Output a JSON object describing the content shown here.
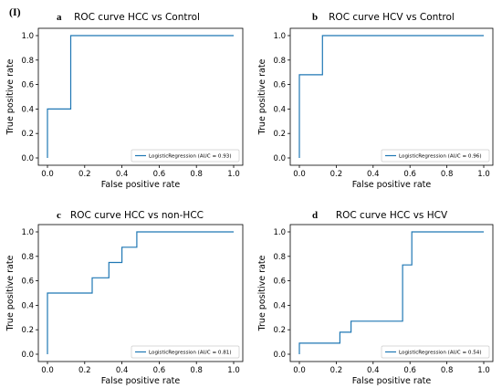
{
  "figure": {
    "label": "(I)"
  },
  "chart_data": [
    {
      "type": "line",
      "panel_letter": "a",
      "title": "ROC curve HCC vs Control",
      "xlabel": "False positive rate",
      "ylabel": "True positive rate",
      "xlim": [
        0,
        1
      ],
      "ylim": [
        0,
        1
      ],
      "xticks": [
        "0.0",
        "0.2",
        "0.4",
        "0.6",
        "0.8",
        "1.0"
      ],
      "yticks": [
        "0.0",
        "0.2",
        "0.4",
        "0.6",
        "0.8",
        "1.0"
      ],
      "legend_position": "lower-right",
      "grid": false,
      "series": [
        {
          "name": "LogisticRegression (AUC = 0.93)",
          "color": "#1f77b4",
          "x": [
            0,
            0,
            0.125,
            0.125,
            1
          ],
          "y": [
            0,
            0.4,
            0.4,
            1.0,
            1.0
          ]
        }
      ]
    },
    {
      "type": "line",
      "panel_letter": "b",
      "title": "ROC curve HCV vs Control",
      "xlabel": "False positive rate",
      "ylabel": "True positive rate",
      "xlim": [
        0,
        1
      ],
      "ylim": [
        0,
        1
      ],
      "xticks": [
        "0.0",
        "0.2",
        "0.4",
        "0.6",
        "0.8",
        "1.0"
      ],
      "yticks": [
        "0.0",
        "0.2",
        "0.4",
        "0.6",
        "0.8",
        "1.0"
      ],
      "legend_position": "lower-right",
      "grid": false,
      "series": [
        {
          "name": "LogisticRegression (AUC = 0.96)",
          "color": "#1f77b4",
          "x": [
            0,
            0,
            0.125,
            0.125,
            1
          ],
          "y": [
            0,
            0.68,
            0.68,
            1.0,
            1.0
          ]
        }
      ]
    },
    {
      "type": "line",
      "panel_letter": "c",
      "title": "ROC curve HCC vs non-HCC",
      "xlabel": "False positive rate",
      "ylabel": "True positive rate",
      "xlim": [
        0,
        1
      ],
      "ylim": [
        0,
        1
      ],
      "xticks": [
        "0.0",
        "0.2",
        "0.4",
        "0.6",
        "0.8",
        "1.0"
      ],
      "yticks": [
        "0.0",
        "0.2",
        "0.4",
        "0.6",
        "0.8",
        "1.0"
      ],
      "legend_position": "lower-right",
      "grid": false,
      "series": [
        {
          "name": "LogisticRegression (AUC = 0.81)",
          "color": "#1f77b4",
          "x": [
            0,
            0,
            0.24,
            0.24,
            0.33,
            0.33,
            0.4,
            0.4,
            0.48,
            0.48,
            1.0
          ],
          "y": [
            0,
            0.5,
            0.5,
            0.625,
            0.625,
            0.75,
            0.75,
            0.875,
            0.875,
            1.0,
            1.0
          ]
        }
      ]
    },
    {
      "type": "line",
      "panel_letter": "d",
      "title": "ROC curve HCC vs HCV",
      "xlabel": "False positive rate",
      "ylabel": "True positive rate",
      "xlim": [
        0,
        1
      ],
      "ylim": [
        0,
        1
      ],
      "xticks": [
        "0.0",
        "0.2",
        "0.4",
        "0.6",
        "0.8",
        "1.0"
      ],
      "yticks": [
        "0.0",
        "0.2",
        "0.4",
        "0.6",
        "0.8",
        "1.0"
      ],
      "legend_position": "lower-right",
      "grid": false,
      "series": [
        {
          "name": "LogisticRegression (AUC = 0.54)",
          "color": "#1f77b4",
          "x": [
            0,
            0,
            0.22,
            0.22,
            0.28,
            0.28,
            0.56,
            0.56,
            0.61,
            0.61,
            1.0
          ],
          "y": [
            0,
            0.09,
            0.09,
            0.18,
            0.18,
            0.27,
            0.27,
            0.73,
            0.73,
            1.0,
            1.0
          ]
        }
      ]
    }
  ]
}
